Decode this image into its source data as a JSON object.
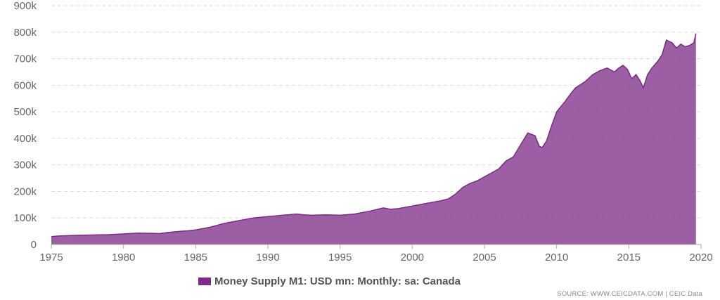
{
  "chart_data": {
    "type": "area",
    "title": "",
    "xlabel": "",
    "ylabel": "",
    "xlim": [
      1975,
      2020
    ],
    "ylim": [
      0,
      900000
    ],
    "x_ticks": [
      1975,
      1980,
      1985,
      1990,
      1995,
      2000,
      2005,
      2010,
      2015,
      2020
    ],
    "x_tick_labels": [
      "1975",
      "1980",
      "1985",
      "1990",
      "1995",
      "2000",
      "2005",
      "2010",
      "2015",
      "2020"
    ],
    "y_ticks": [
      0,
      100000,
      200000,
      300000,
      400000,
      500000,
      600000,
      700000,
      800000,
      900000
    ],
    "y_tick_labels": [
      "0",
      "100k",
      "200k",
      "300k",
      "400k",
      "500k",
      "600k",
      "700k",
      "800k",
      "900k"
    ],
    "grid": "horizontal dashed",
    "legend_position": "bottom-center",
    "series": [
      {
        "name": "Money Supply M1: USD mn: Monthly: sa: Canada",
        "color": "#7b2a86",
        "x": [
          1975.0,
          1975.5,
          1976.0,
          1977.0,
          1978.0,
          1979.0,
          1980.0,
          1981.0,
          1982.0,
          1982.5,
          1983.0,
          1984.0,
          1984.5,
          1985.0,
          1986.0,
          1987.0,
          1988.0,
          1989.0,
          1990.0,
          1991.0,
          1992.0,
          1992.5,
          1993.0,
          1994.0,
          1995.0,
          1996.0,
          1997.0,
          1998.0,
          1998.5,
          1999.0,
          2000.0,
          2001.0,
          2002.0,
          2002.5,
          2003.0,
          2003.5,
          2004.0,
          2004.5,
          2005.0,
          2005.5,
          2006.0,
          2006.5,
          2007.0,
          2007.5,
          2008.0,
          2008.5,
          2008.8,
          2009.0,
          2009.3,
          2009.6,
          2010.0,
          2010.3,
          2010.6,
          2011.0,
          2011.3,
          2011.6,
          2012.0,
          2012.5,
          2013.0,
          2013.5,
          2014.0,
          2014.3,
          2014.6,
          2014.9,
          2015.2,
          2015.5,
          2015.8,
          2016.0,
          2016.3,
          2016.6,
          2017.0,
          2017.3,
          2017.6,
          2017.8,
          2018.0,
          2018.3,
          2018.6,
          2018.9,
          2019.2,
          2019.5,
          2019.65
        ],
        "values": [
          30000,
          32000,
          33000,
          35000,
          36000,
          37000,
          40000,
          43000,
          42000,
          41000,
          45000,
          50000,
          52000,
          55000,
          65000,
          80000,
          90000,
          100000,
          105000,
          110000,
          115000,
          112000,
          110000,
          112000,
          110000,
          115000,
          125000,
          138000,
          133000,
          135000,
          145000,
          155000,
          165000,
          172000,
          190000,
          215000,
          230000,
          240000,
          255000,
          270000,
          285000,
          315000,
          330000,
          375000,
          420000,
          410000,
          370000,
          365000,
          390000,
          440000,
          500000,
          520000,
          540000,
          570000,
          590000,
          600000,
          615000,
          640000,
          655000,
          665000,
          650000,
          665000,
          675000,
          660000,
          625000,
          640000,
          615000,
          590000,
          640000,
          665000,
          690000,
          715000,
          770000,
          765000,
          760000,
          740000,
          755000,
          745000,
          750000,
          760000,
          795000
        ]
      }
    ]
  },
  "legend": {
    "label": "Money Supply M1: USD mn: Monthly: sa: Canada",
    "color": "#7b2a86"
  },
  "source": "SOURCE: WWW.CEICDATA.COM | CEIC Data"
}
